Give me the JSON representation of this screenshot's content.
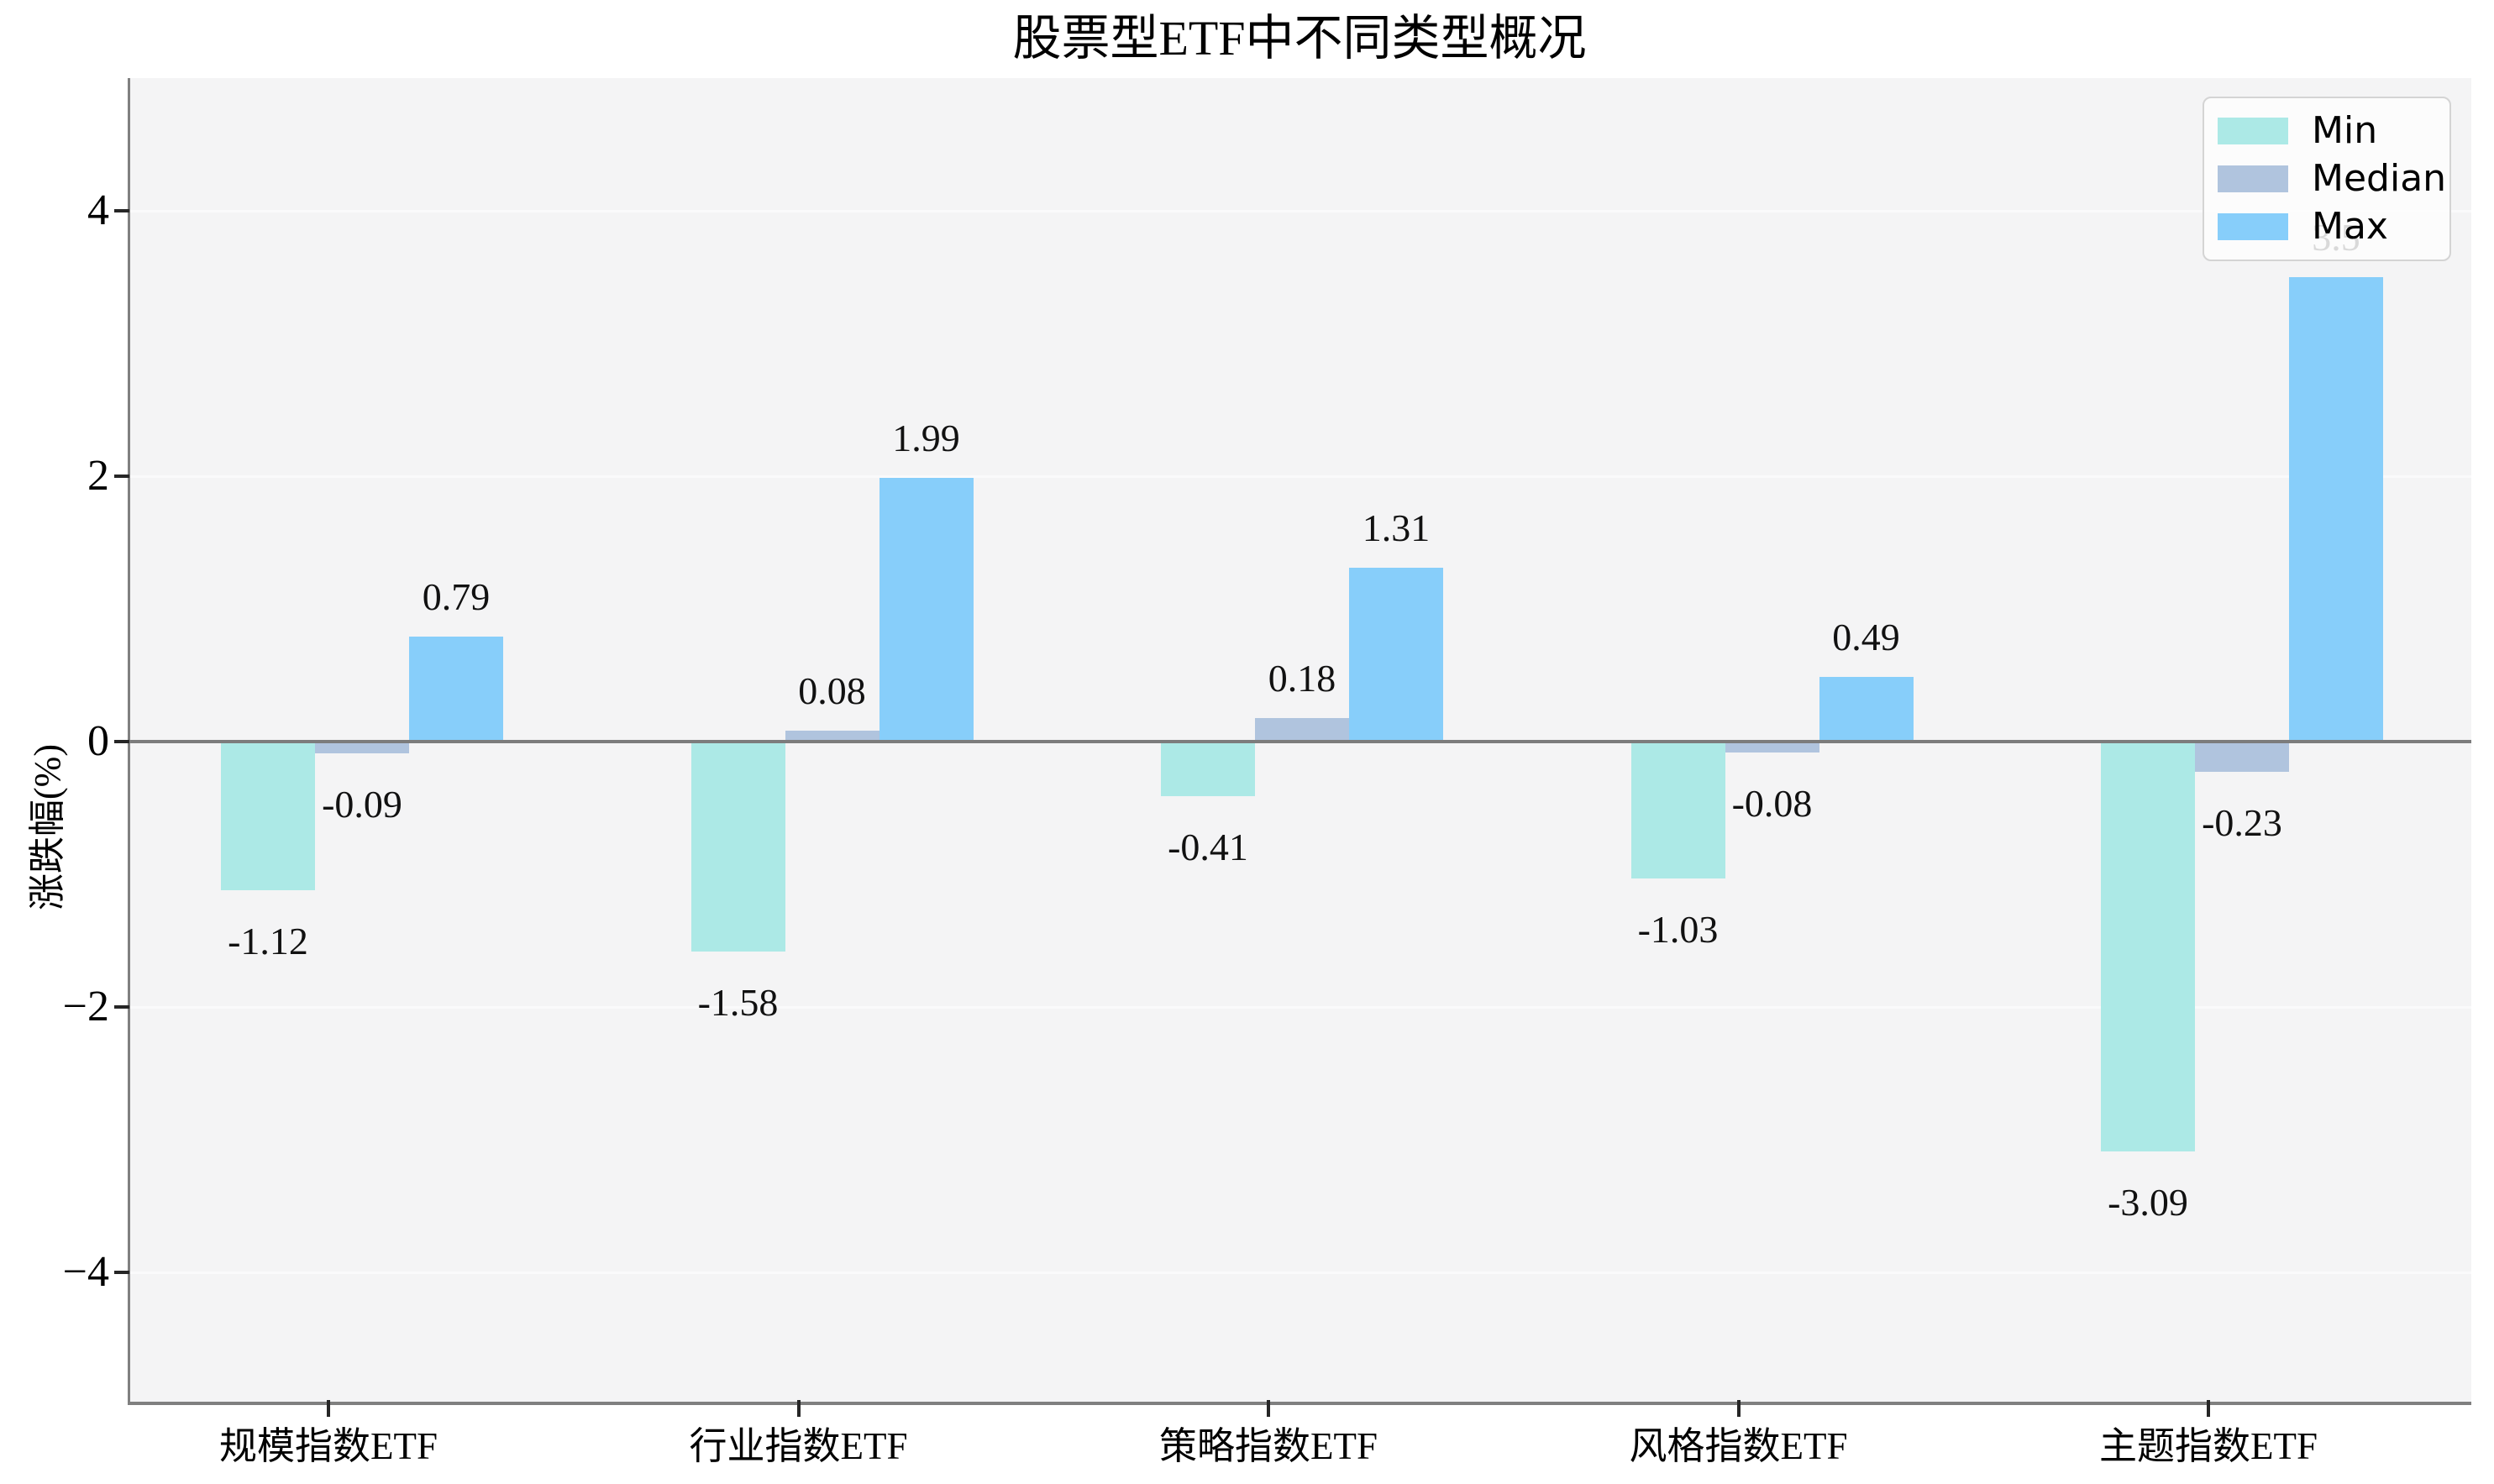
{
  "chart_data": {
    "type": "bar",
    "title": "股票型ETF中不同类型概况",
    "ylabel": "涨跌幅(%)",
    "categories": [
      "规模指数ETF",
      "行业指数ETF",
      "策略指数ETF",
      "风格指数ETF",
      "主题指数ETF"
    ],
    "series": [
      {
        "name": "Min",
        "color": "#ace9e6",
        "values": [
          -1.12,
          -1.58,
          -0.41,
          -1.03,
          -3.09
        ],
        "labels": [
          "-1.12",
          "-1.58",
          "-0.41",
          "-1.03",
          "-3.09"
        ]
      },
      {
        "name": "Median",
        "color": "#b0c4de",
        "values": [
          -0.09,
          0.08,
          0.18,
          -0.08,
          -0.23
        ],
        "labels": [
          "-0.09",
          "0.08",
          "0.18",
          "-0.08",
          "-0.23"
        ]
      },
      {
        "name": "Max",
        "color": "#87cefa",
        "values": [
          0.79,
          1.99,
          1.31,
          0.49,
          3.5
        ],
        "labels": [
          "0.79",
          "1.99",
          "1.31",
          "0.49",
          "3.5"
        ]
      }
    ],
    "yticks": [
      {
        "value": 4,
        "label": "4"
      },
      {
        "value": 2,
        "label": "2"
      },
      {
        "value": 0,
        "label": "0"
      },
      {
        "value": -2,
        "label": "−2"
      },
      {
        "value": -4,
        "label": "−4"
      }
    ],
    "ylim": [
      -5,
      5
    ],
    "grid": "horizontal",
    "gridline_color": "#fafafb",
    "plot_bg": "#f4f4f5",
    "axis_color": "#808080",
    "zero_line_color": "#7c7c7c",
    "legend_position": "upper right"
  }
}
